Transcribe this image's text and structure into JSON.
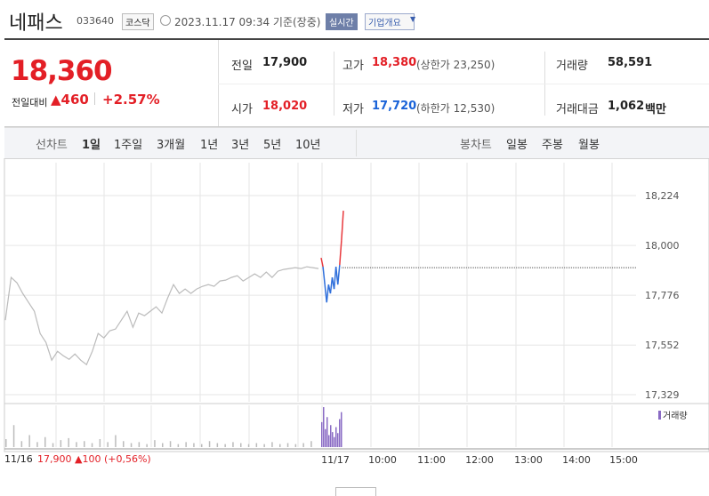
{
  "header": {
    "name": "네패스",
    "code": "033640",
    "market": "코스닥",
    "timestamp": "2023.11.17 09:34 기준(장중)",
    "realtime": "실시간",
    "company_menu": "기업개요"
  },
  "quote": {
    "price": "18,360",
    "change_label": "전일대비",
    "change": "▲460",
    "change_pct": "+2.57%"
  },
  "stats": [
    {
      "label": "전일",
      "value": "17,900"
    },
    {
      "label": "고가",
      "value": "18,380",
      "note": "(상한가 23,250)"
    },
    {
      "label": "거래량",
      "value": "58,591"
    },
    {
      "label": "시가",
      "value": "18,020"
    },
    {
      "label": "저가",
      "value": "17,720",
      "note": "(하한가 12,530)"
    },
    {
      "label": "거래대금",
      "value": "1,062",
      "unit": "백만"
    }
  ],
  "tabs": {
    "line_label": "선차트",
    "line": [
      "1일",
      "1주일",
      "3개월",
      "1년",
      "3년",
      "5년",
      "10년"
    ],
    "candle_label": "봉차트",
    "candle": [
      "일봉",
      "주봉",
      "월봉"
    ]
  },
  "chart_data": {
    "type": "line",
    "ylim": [
      17297,
      18372
    ],
    "yticks": [
      {
        "value": 18224,
        "label": "18,224"
      },
      {
        "value": 18000,
        "label": "18,000"
      },
      {
        "value": 17776,
        "label": "17,776"
      },
      {
        "value": 17552,
        "label": "17,552"
      },
      {
        "value": 17329,
        "label": "17,329"
      }
    ],
    "baseline": 17900,
    "grid": true,
    "x_labels": [
      "11/16",
      "11/17",
      "10:00",
      "11:00",
      "12:00",
      "13:00",
      "14:00",
      "15:00"
    ],
    "series": [
      {
        "color": "#bbbbbb",
        "values": [
          17664,
          17856,
          17832,
          17784,
          17744,
          17704,
          17604,
          17564,
          17484,
          17524,
          17504,
          17488,
          17512,
          17484,
          17464,
          17524,
          17604,
          17584,
          17616,
          17624,
          17664,
          17704,
          17632,
          17696,
          17684,
          17704,
          17724,
          17696,
          17764,
          17824,
          17784,
          17804,
          17784,
          17804,
          17816,
          17824,
          17816,
          17840,
          17844,
          17856,
          17864,
          17840,
          17856,
          17872,
          17856,
          17880,
          17856,
          17884,
          17892,
          17896,
          17900,
          17896,
          17904,
          17900,
          17896
        ]
      },
      {
        "color": "#2f6fdb",
        "up_color": "#e8393d",
        "values": [
          17944,
          17904,
          17824,
          17744,
          17824,
          17784,
          17856,
          17804,
          17904,
          17824,
          17912,
          18024,
          18156
        ]
      }
    ],
    "volume": {
      "label": "거래량",
      "color": "#bbbbbb",
      "today_color": "#8a6bc4",
      "prev": [
        8,
        22,
        6,
        12,
        5,
        10,
        4,
        7,
        9,
        5,
        6,
        4,
        8,
        5,
        12,
        6,
        4,
        5,
        3,
        7,
        4,
        6,
        3,
        5,
        4,
        3,
        6,
        4,
        3,
        5,
        4,
        3,
        4,
        3,
        5,
        3,
        4,
        3,
        4,
        6
      ],
      "today": [
        25,
        40,
        18,
        30,
        12,
        22,
        15,
        10,
        20,
        14,
        28,
        35
      ]
    },
    "footer": {
      "date": "11/16",
      "text": "17,900 ▲100 (+0,56%)"
    }
  }
}
